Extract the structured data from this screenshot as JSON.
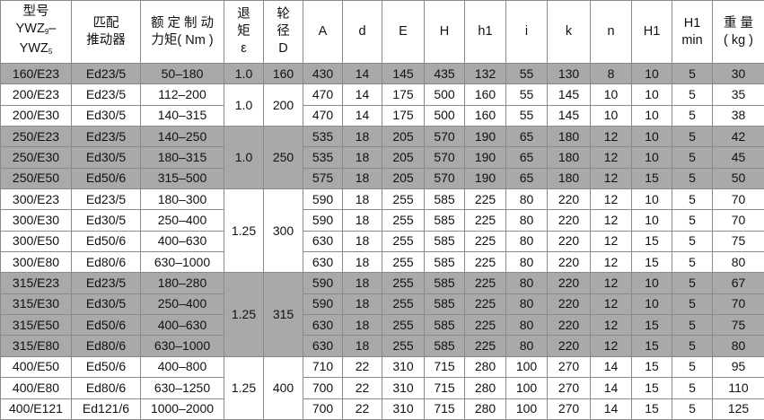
{
  "header": {
    "model_line1": "型号",
    "model_line2": "YWZ",
    "model_sub2": "9",
    "model_dash": "–",
    "model_line3": "YWZ",
    "model_sub3": "5",
    "actuator": [
      "匹配",
      "推动器"
    ],
    "torque": [
      "额 定 制 动",
      "力矩( Nm )"
    ],
    "epsilon": [
      "退",
      "矩",
      "ε"
    ],
    "diameter": [
      "轮",
      "径",
      "D"
    ],
    "dims": [
      "A",
      "d",
      "E",
      "H",
      "h1",
      "i",
      "k",
      "n",
      "H1"
    ],
    "h1min": [
      "H1",
      "min"
    ],
    "weight": [
      "重 量",
      "( kg )"
    ]
  },
  "colors": {
    "shaded_row": "#a9a9a9",
    "border": "#8a8a8a"
  },
  "groups": [
    {
      "epsilon": "1.0",
      "D": "160",
      "shaded": true,
      "rows": [
        [
          "160/E23",
          "Ed23/5",
          "50–180",
          "430",
          "14",
          "145",
          "435",
          "132",
          "55",
          "130",
          "8",
          "10",
          "5",
          "30"
        ]
      ]
    },
    {
      "epsilon": "1.0",
      "D": "200",
      "shaded": false,
      "rows": [
        [
          "200/E23",
          "Ed23/5",
          "112–200",
          "470",
          "14",
          "175",
          "500",
          "160",
          "55",
          "145",
          "10",
          "10",
          "5",
          "35"
        ],
        [
          "200/E30",
          "Ed30/5",
          "140–315",
          "470",
          "14",
          "175",
          "500",
          "160",
          "55",
          "145",
          "10",
          "10",
          "5",
          "38"
        ]
      ]
    },
    {
      "epsilon": "1.0",
      "D": "250",
      "shaded": true,
      "rows": [
        [
          "250/E23",
          "Ed23/5",
          "140–250",
          "535",
          "18",
          "205",
          "570",
          "190",
          "65",
          "180",
          "12",
          "10",
          "5",
          "42"
        ],
        [
          "250/E30",
          "Ed30/5",
          "180–315",
          "535",
          "18",
          "205",
          "570",
          "190",
          "65",
          "180",
          "12",
          "10",
          "5",
          "45"
        ],
        [
          "250/E50",
          "Ed50/6",
          "315–500",
          "575",
          "18",
          "205",
          "570",
          "190",
          "65",
          "180",
          "12",
          "15",
          "5",
          "50"
        ]
      ]
    },
    {
      "epsilon": "1.25",
      "D": "300",
      "shaded": false,
      "rows": [
        [
          "300/E23",
          "Ed23/5",
          "180–300",
          "590",
          "18",
          "255",
          "585",
          "225",
          "80",
          "220",
          "12",
          "10",
          "5",
          "70"
        ],
        [
          "300/E30",
          "Ed30/5",
          "250–400",
          "590",
          "18",
          "255",
          "585",
          "225",
          "80",
          "220",
          "12",
          "10",
          "5",
          "70"
        ],
        [
          "300/E50",
          "Ed50/6",
          "400–630",
          "630",
          "18",
          "255",
          "585",
          "225",
          "80",
          "220",
          "12",
          "15",
          "5",
          "75"
        ],
        [
          "300/E80",
          "Ed80/6",
          "630–1000",
          "630",
          "18",
          "255",
          "585",
          "225",
          "80",
          "220",
          "12",
          "15",
          "5",
          "80"
        ]
      ]
    },
    {
      "epsilon": "1.25",
      "D": "315",
      "shaded": true,
      "rows": [
        [
          "315/E23",
          "Ed23/5",
          "180–280",
          "590",
          "18",
          "255",
          "585",
          "225",
          "80",
          "220",
          "12",
          "10",
          "5",
          "67"
        ],
        [
          "315/E30",
          "Ed30/5",
          "250–400",
          "590",
          "18",
          "255",
          "585",
          "225",
          "80",
          "220",
          "12",
          "10",
          "5",
          "70"
        ],
        [
          "315/E50",
          "Ed50/6",
          "400–630",
          "630",
          "18",
          "255",
          "585",
          "225",
          "80",
          "220",
          "12",
          "15",
          "5",
          "75"
        ],
        [
          "315/E80",
          "Ed80/6",
          "630–1000",
          "630",
          "18",
          "255",
          "585",
          "225",
          "80",
          "220",
          "12",
          "15",
          "5",
          "80"
        ]
      ]
    },
    {
      "epsilon": "1.25",
      "D": "400",
      "shaded": false,
      "rows": [
        [
          "400/E50",
          "Ed50/6",
          "400–800",
          "710",
          "22",
          "310",
          "715",
          "280",
          "100",
          "270",
          "14",
          "15",
          "5",
          "95"
        ],
        [
          "400/E80",
          "Ed80/6",
          "630–1250",
          "700",
          "22",
          "310",
          "715",
          "280",
          "100",
          "270",
          "14",
          "15",
          "5",
          "110"
        ],
        [
          "400/E121",
          "Ed121/6",
          "1000–2000",
          "700",
          "22",
          "310",
          "715",
          "280",
          "100",
          "270",
          "14",
          "15",
          "5",
          "125"
        ]
      ]
    }
  ]
}
